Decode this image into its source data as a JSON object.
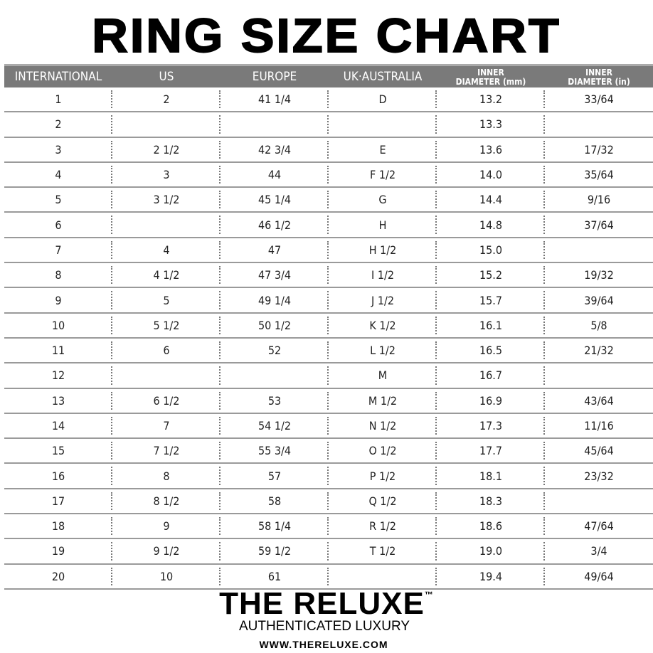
{
  "title": "RING SIZE CHART",
  "headers": [
    "INTERNATIONAL",
    "US",
    "EUROPE",
    "UK·AUSTRALIA",
    "INNER\nDIAMETER (mm)",
    "INNER\nDIAMETER (in)"
  ],
  "rows": [
    [
      "1",
      "2",
      "41 1/4",
      "D",
      "13.2",
      "33/64"
    ],
    [
      "2",
      "",
      "",
      "",
      "13.3",
      ""
    ],
    [
      "3",
      "2 1/2",
      "42 3/4",
      "E",
      "13.6",
      "17/32"
    ],
    [
      "4",
      "3",
      "44",
      "F 1/2",
      "14.0",
      "35/64"
    ],
    [
      "5",
      "3 1/2",
      "45 1/4",
      "G",
      "14.4",
      "9/16"
    ],
    [
      "6",
      "",
      "46 1/2",
      "H",
      "14.8",
      "37/64"
    ],
    [
      "7",
      "4",
      "47",
      "H 1/2",
      "15.0",
      ""
    ],
    [
      "8",
      "4 1/2",
      "47 3/4",
      "I 1/2",
      "15.2",
      "19/32"
    ],
    [
      "9",
      "5",
      "49 1/4",
      "J 1/2",
      "15.7",
      "39/64"
    ],
    [
      "10",
      "5 1/2",
      "50 1/2",
      "K 1/2",
      "16.1",
      "5/8"
    ],
    [
      "11",
      "6",
      "52",
      "L 1/2",
      "16.5",
      "21/32"
    ],
    [
      "12",
      "",
      "",
      "M",
      "16.7",
      ""
    ],
    [
      "13",
      "6 1/2",
      "53",
      "M 1/2",
      "16.9",
      "43/64"
    ],
    [
      "14",
      "7",
      "54 1/2",
      "N 1/2",
      "17.3",
      "11/16"
    ],
    [
      "15",
      "7 1/2",
      "55 3/4",
      "O 1/2",
      "17.7",
      "45/64"
    ],
    [
      "16",
      "8",
      "57",
      "P 1/2",
      "18.1",
      "23/32"
    ],
    [
      "17",
      "8 1/2",
      "58",
      "Q 1/2",
      "18.3",
      ""
    ],
    [
      "18",
      "9",
      "58 1/4",
      "R 1/2",
      "18.6",
      "47/64"
    ],
    [
      "19",
      "9 1/2",
      "59 1/2",
      "T 1/2",
      "19.0",
      "3/4"
    ],
    [
      "20",
      "10",
      "61",
      "",
      "19.4",
      "49/64"
    ]
  ],
  "brand": {
    "name": "THE RELUXE",
    "trademark": "™",
    "tagline": "AUTHENTICATED LUXURY",
    "url": "WWW.THERELUXE.COM"
  },
  "colors": {
    "header_bg": "#7a7a7a",
    "header_text": "#ffffff",
    "row_rule": "#9a9a9a"
  }
}
